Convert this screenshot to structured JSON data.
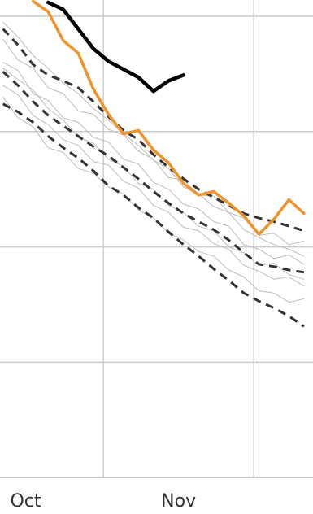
{
  "chart_data": {
    "type": "line",
    "x": [
      11,
      14,
      17,
      20,
      23,
      26,
      29,
      32,
      35,
      38,
      41,
      44,
      47,
      50,
      53,
      56,
      59,
      62,
      65,
      68,
      71
    ],
    "xlim": [
      10.4,
      72.8
    ],
    "xticks": [
      {
        "value": 15.5,
        "label": "Oct"
      },
      {
        "value": 46,
        "label": "Nov"
      }
    ],
    "xgrid": [
      31,
      61
    ],
    "ylim": [
      -0.316,
      4.141
    ],
    "yticks": [
      0,
      1,
      2,
      3,
      4
    ],
    "grid": true,
    "series": [
      {
        "color": "#bdbdbd",
        "style": "solid",
        "linewidth": 1,
        "values": [
          3.8,
          3.62,
          3.55,
          3.38,
          3.33,
          3.18,
          3.15,
          3.02,
          2.97,
          2.83,
          2.76,
          2.6,
          2.58,
          2.45,
          2.44,
          2.3,
          2.25,
          2.1,
          2.12,
          2.02,
          2.05
        ]
      },
      {
        "color": "#bdbdbd",
        "style": "solid",
        "linewidth": 1,
        "values": [
          3.6,
          3.53,
          3.33,
          3.27,
          3.12,
          3.08,
          2.95,
          2.91,
          2.76,
          2.72,
          2.56,
          2.5,
          2.37,
          2.33,
          2.22,
          2.18,
          2.02,
          1.98,
          1.9,
          1.93,
          1.85
        ]
      },
      {
        "color": "#bdbdbd",
        "style": "solid",
        "linewidth": 1,
        "values": [
          3.4,
          3.32,
          3.14,
          3.06,
          2.93,
          2.88,
          2.74,
          2.71,
          2.57,
          2.51,
          2.36,
          2.3,
          2.17,
          2.14,
          2.03,
          1.98,
          1.84,
          1.79,
          1.72,
          1.74,
          1.66
        ]
      },
      {
        "color": "#bdbdbd",
        "style": "solid",
        "linewidth": 1,
        "values": [
          3.3,
          3.12,
          3.04,
          2.86,
          2.82,
          2.68,
          2.64,
          2.52,
          2.46,
          2.32,
          2.25,
          2.12,
          2.06,
          1.96,
          1.92,
          1.8,
          1.74,
          1.62,
          1.6,
          1.52,
          1.55
        ]
      },
      {
        "color": "#bdbdbd",
        "style": "solid",
        "linewidth": 1,
        "values": [
          3.95,
          3.82,
          3.66,
          3.55,
          3.42,
          3.33,
          3.2,
          3.1,
          2.98,
          2.88,
          2.75,
          2.68,
          2.52,
          2.46,
          2.35,
          2.3,
          2.15,
          2.08,
          2.02,
          1.98,
          1.92
        ]
      },
      {
        "color": "#bdbdbd",
        "style": "solid",
        "linewidth": 1,
        "values": [
          3.55,
          3.45,
          3.36,
          3.2,
          3.1,
          2.95,
          2.9,
          2.76,
          2.7,
          2.55,
          2.5,
          2.36,
          2.3,
          2.18,
          2.14,
          2.0,
          1.95,
          1.84,
          1.86,
          1.76,
          1.72
        ]
      },
      {
        "color": "#333333",
        "style": "dashed",
        "linewidth": 3,
        "values": [
          3.89,
          3.75,
          3.58,
          3.49,
          3.44,
          3.38,
          3.26,
          3.13,
          3.01,
          2.93,
          2.8,
          2.69,
          2.59,
          2.5,
          2.43,
          2.36,
          2.29,
          2.25,
          2.22,
          2.18,
          2.14
        ]
      },
      {
        "color": "#333333",
        "style": "dashed",
        "linewidth": 3,
        "values": [
          3.52,
          3.4,
          3.26,
          3.14,
          3.05,
          2.96,
          2.87,
          2.79,
          2.69,
          2.59,
          2.48,
          2.38,
          2.29,
          2.22,
          2.15,
          2.06,
          1.95,
          1.85,
          1.83,
          1.8,
          1.78
        ]
      },
      {
        "color": "#333333",
        "style": "dashed",
        "linewidth": 3,
        "values": [
          3.24,
          3.17,
          3.08,
          2.96,
          2.86,
          2.77,
          2.66,
          2.53,
          2.45,
          2.34,
          2.25,
          2.13,
          2.02,
          1.92,
          1.81,
          1.71,
          1.6,
          1.53,
          1.47,
          1.4,
          1.31
        ]
      },
      {
        "color": "#f0932b",
        "style": "solid",
        "linewidth": 3.5,
        "values": [
          null,
          null,
          4.13,
          4.04,
          3.79,
          3.68,
          3.37,
          3.15,
          2.98,
          3.01,
          2.84,
          2.73,
          2.55,
          2.45,
          2.48,
          2.38,
          2.27,
          2.11,
          2.24,
          2.41,
          2.29
        ]
      },
      {
        "color": "#000000",
        "style": "solid",
        "linewidth": 4.5,
        "values": [
          null,
          null,
          null,
          4.12,
          4.06,
          3.89,
          3.72,
          3.61,
          3.54,
          3.47,
          3.35,
          3.44,
          3.49,
          null,
          null,
          null,
          null,
          null,
          null,
          null,
          null
        ]
      }
    ]
  }
}
